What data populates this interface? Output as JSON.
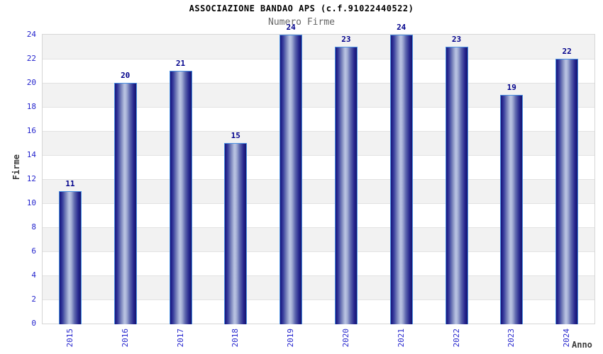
{
  "header": {
    "title": "ASSOCIAZIONE BANDAO APS (c.f.91022440522)",
    "subtitle": "Numero Firme"
  },
  "chart_data": {
    "type": "bar",
    "title": "ASSOCIAZIONE BANDAO APS (c.f.91022440522)",
    "subtitle": "Numero Firme",
    "categories": [
      "2015",
      "2016",
      "2017",
      "2018",
      "2019",
      "2020",
      "2021",
      "2022",
      "2023",
      "2024"
    ],
    "values": [
      11,
      20,
      21,
      15,
      24,
      23,
      24,
      23,
      19,
      22
    ],
    "xlabel": "Anno",
    "ylabel": "Firme",
    "ylim": [
      0,
      24
    ],
    "ytick_step": 2,
    "yticks": [
      0,
      2,
      4,
      6,
      8,
      10,
      12,
      14,
      16,
      18,
      20,
      22,
      24
    ],
    "bar_labels_shown": true,
    "grid": "horizontal-bands-alternating",
    "legend": "none",
    "colors": {
      "bar_edge_dark": "#171778",
      "bar_center_light": "#bac4e2",
      "bar_border": "#4a90e2",
      "tick_label": "#2424cd",
      "value_label": "#00008b",
      "band_gray": "#f2f2f2",
      "band_white": "#ffffff",
      "gridline": "#e2e2e2",
      "axis_text": "#3c3c3c",
      "title_color": "#000000",
      "subtitle_color": "#666666"
    }
  }
}
